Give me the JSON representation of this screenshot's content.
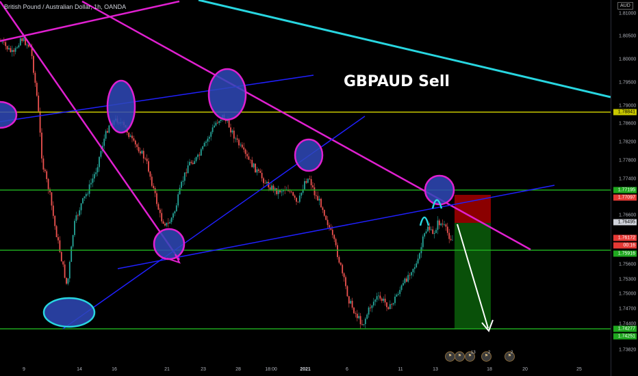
{
  "header": {
    "symbol_text": "British Pound / Australian Dollar, 1h, OANDA",
    "currency": "AUD"
  },
  "annotation": {
    "title": "GBPAUD Sell"
  },
  "axis": {
    "price_labels": [
      "1.81000",
      "1.80500",
      "1.80000",
      "1.79500",
      "1.79000",
      "1.78600",
      "1.78200",
      "1.77800",
      "1.77400",
      "1.76600",
      "1.75600",
      "1.75300",
      "1.75000",
      "1.74700",
      "1.74400",
      "1.73820"
    ],
    "date_labels": [
      "9",
      "14",
      "16",
      "21",
      "23",
      "28",
      "18:00",
      "2021",
      "6",
      "11",
      "13",
      "18",
      "20",
      "25"
    ]
  },
  "price_tags": [
    {
      "text": "1.78841",
      "bg": "#c9c900",
      "fg": "#000000"
    },
    {
      "text": "1.77195",
      "bg": "#1fa81f",
      "fg": "#ffffff"
    },
    {
      "text": "1.77097",
      "bg": "#e53935",
      "fg": "#ffffff"
    },
    {
      "text": "1.76495",
      "bg": "#d1d4dc",
      "fg": "#000000"
    },
    {
      "text": "1.76172",
      "bg": "#e53935",
      "fg": "#ffffff"
    },
    {
      "text": "00:16",
      "bg": "#e53935",
      "fg": "#ffffff"
    },
    {
      "text": "1.75916",
      "bg": "#1fa81f",
      "fg": "#ffffff"
    },
    {
      "text": "1.74277",
      "bg": "#1fa81f",
      "fg": "#ffffff"
    },
    {
      "text": "1.74251",
      "bg": "#1fa81f",
      "fg": "#ffffff"
    }
  ],
  "events": {
    "count_a": "13",
    "count_b": "2",
    "count_c": "2"
  },
  "colors": {
    "resistance_line": "#c9c900",
    "support_line": "#1fa81f",
    "trend_magenta": "#e020d0",
    "trend_cyan": "#28d6e0",
    "trend_blue": "#2020ff",
    "marker_fill": "#2f49b8",
    "stop_zone": "#a30000",
    "target_zone": "#0b5e0b",
    "candle_up": "#26a69a",
    "candle_down": "#ef5350"
  },
  "icons": [
    "event-flag-icon",
    "down-arrow-icon"
  ]
}
